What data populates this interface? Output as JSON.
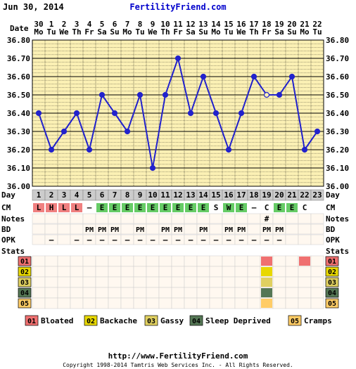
{
  "header": {
    "date": "Jun 30, 2014",
    "site": "FertilityFriend.com"
  },
  "labels": {
    "date": "Date",
    "day": "Day",
    "cm": "CM",
    "notes": "Notes",
    "bd": "BD",
    "opk": "OPK",
    "stats": "Stats"
  },
  "colors": {
    "plot_bg": "#fbf0b4",
    "grid": "#000000",
    "line": "#2222cc",
    "cm_low": "#f08080",
    "cm_egg": "#66cc66",
    "cm_watery": "#66cc66",
    "bloated": "#f07070",
    "backache": "#e8d800",
    "gassy": "#e0d060",
    "sleep_deprived": "#557755",
    "cramps": "#ffcc66",
    "day_bg": "#cccccc"
  },
  "chart_data": {
    "type": "line",
    "x_dates": [
      "30",
      "1",
      "2",
      "3",
      "4",
      "5",
      "6",
      "7",
      "8",
      "9",
      "10",
      "11",
      "12",
      "13",
      "14",
      "15",
      "16",
      "17",
      "18",
      "19",
      "20",
      "21",
      "22"
    ],
    "x_weekdays": [
      "Mo",
      "Tu",
      "We",
      "Th",
      "Fr",
      "Sa",
      "Su",
      "Mo",
      "Tu",
      "We",
      "Th",
      "Fr",
      "Sa",
      "Su",
      "Mo",
      "Tu",
      "We",
      "Th",
      "Fr",
      "Sa",
      "Su",
      "Mo",
      "Tu"
    ],
    "cycle_days": [
      "1",
      "2",
      "3",
      "4",
      "5",
      "6",
      "7",
      "8",
      "9",
      "10",
      "11",
      "12",
      "13",
      "14",
      "15",
      "16",
      "17",
      "18",
      "19",
      "20",
      "21",
      "22",
      "23"
    ],
    "series": [
      {
        "values": [
          36.4,
          36.2,
          36.3,
          36.4,
          36.2,
          36.5,
          36.4,
          36.3,
          36.5,
          36.1,
          36.5,
          36.7,
          36.4,
          36.6,
          36.4,
          36.2,
          36.4,
          36.6,
          36.5,
          36.5,
          36.6,
          36.2,
          36.3
        ]
      }
    ],
    "open_points": [
      18
    ],
    "y_ticks": [
      "36.80",
      "36.70",
      "36.60",
      "36.50",
      "36.40",
      "36.30",
      "36.20",
      "36.10",
      "36.00"
    ],
    "ylim": [
      36.0,
      36.8
    ],
    "grid": true
  },
  "cm_row": [
    "L",
    "H",
    "L",
    "L",
    "–",
    "E",
    "E",
    "E",
    "E",
    "E",
    "E",
    "E",
    "E",
    "E",
    "S",
    "W",
    "E",
    "–",
    "C",
    "E",
    "E",
    "C",
    ""
  ],
  "notes_row": [
    "",
    "",
    "",
    "",
    "",
    "",
    "",
    "",
    "",
    "",
    "",
    "",
    "",
    "",
    "",
    "",
    "",
    "",
    "#",
    "",
    "",
    "",
    ""
  ],
  "bd_row": [
    "",
    "",
    "",
    "",
    "PM",
    "PM",
    "PM",
    "",
    "PM",
    "",
    "PM",
    "PM",
    "",
    "PM",
    "",
    "PM",
    "PM",
    "",
    "PM",
    "PM",
    "",
    "",
    ""
  ],
  "opk_row": [
    "",
    "–",
    "",
    "–",
    "–",
    "–",
    "–",
    "–",
    "–",
    "–",
    "–",
    "–",
    "–",
    "–",
    "–",
    "–",
    "–",
    "–",
    "–",
    "–",
    "",
    "",
    ""
  ],
  "stats": {
    "codes": [
      "01",
      "02",
      "03",
      "04",
      "05"
    ],
    "marks": [
      {
        "code": "01",
        "days": [
          18,
          21
        ]
      },
      {
        "code": "02",
        "days": [
          18
        ]
      },
      {
        "code": "03",
        "days": [
          18
        ]
      },
      {
        "code": "04",
        "days": [
          18
        ]
      },
      {
        "code": "05",
        "days": [
          18
        ]
      }
    ]
  },
  "legend": [
    {
      "code": "01",
      "label": "Bloated"
    },
    {
      "code": "02",
      "label": "Backache"
    },
    {
      "code": "03",
      "label": "Gassy"
    },
    {
      "code": "04",
      "label": "Sleep Deprived"
    },
    {
      "code": "05",
      "label": "Cramps"
    }
  ],
  "footer": {
    "url": "http://www.FertilityFriend.com",
    "copyright": "Copyright 1998-2014 Tamtris Web Services Inc. - All Rights Reserved."
  }
}
